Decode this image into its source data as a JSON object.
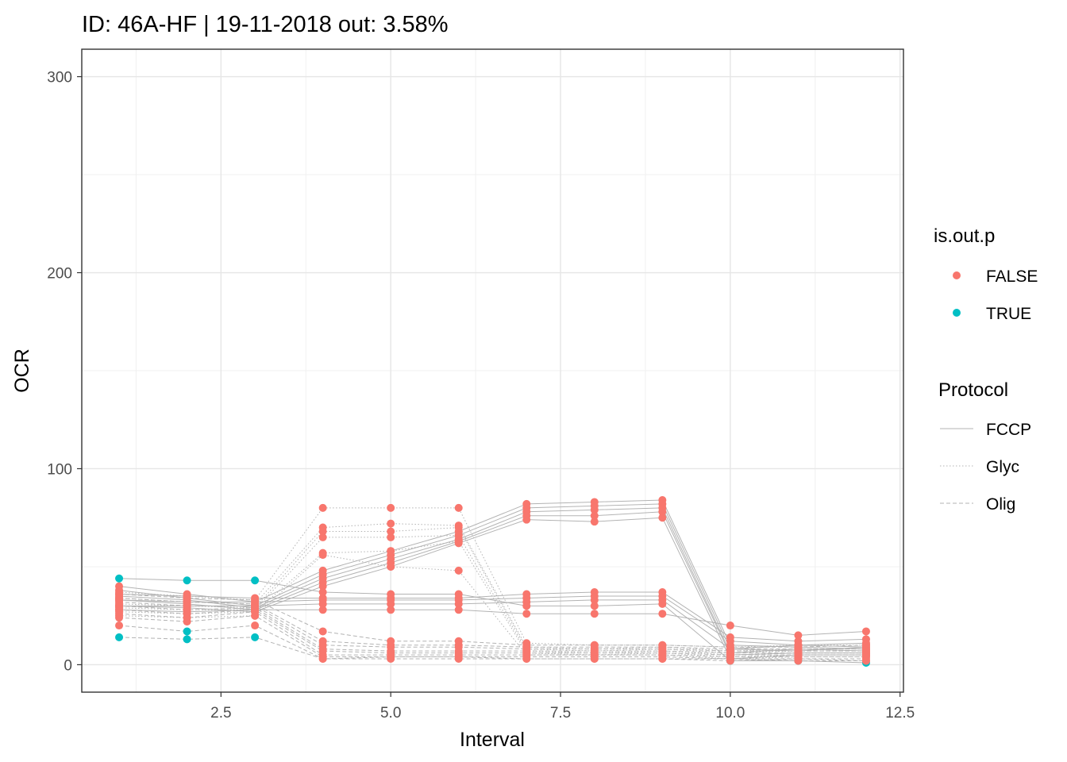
{
  "chart_data": {
    "type": "line",
    "title": "ID: 46A-HF | 19-11-2018  out: 3.58%",
    "xlabel": "Interval",
    "ylabel": "OCR",
    "xlim": [
      0.45,
      12.55
    ],
    "ylim": [
      -14,
      314
    ],
    "x_ticks": [
      2.5,
      5.0,
      7.5,
      10.0,
      12.5
    ],
    "x_tick_labels": [
      "2.5",
      "5.0",
      "7.5",
      "10.0",
      "12.5"
    ],
    "y_ticks": [
      0,
      100,
      200,
      300
    ],
    "y_tick_labels": [
      "0",
      "100",
      "200",
      "300"
    ],
    "grid": true,
    "legend_position": "right",
    "x": [
      1,
      2,
      3,
      4,
      5,
      6,
      7,
      8,
      9,
      10,
      11,
      12
    ],
    "colors": {
      "FALSE": "#F8766D",
      "TRUE": "#00BFC4",
      "line": "#b3b3b3"
    },
    "legends": [
      {
        "title": "is.out.p",
        "entries": [
          {
            "label": "FALSE",
            "color": "#F8766D",
            "shape": "point"
          },
          {
            "label": "TRUE",
            "color": "#00BFC4",
            "shape": "point"
          }
        ]
      },
      {
        "title": "Protocol",
        "entries": [
          {
            "label": "FCCP",
            "linetype": "solid"
          },
          {
            "label": "Glyc",
            "linetype": "dotted"
          },
          {
            "label": "Olig",
            "linetype": "dashed"
          }
        ]
      }
    ],
    "series": [
      {
        "protocol": "FCCP",
        "values": [
          40,
          36,
          32,
          48,
          58,
          68,
          82,
          83,
          84,
          10,
          9,
          8
        ],
        "out": [
          false,
          false,
          false,
          false,
          false,
          false,
          false,
          false,
          false,
          false,
          false,
          false
        ]
      },
      {
        "protocol": "FCCP",
        "values": [
          38,
          34,
          30,
          46,
          56,
          66,
          80,
          81,
          82,
          8,
          10,
          9
        ],
        "out": [
          false,
          false,
          false,
          false,
          false,
          false,
          false,
          false,
          false,
          false,
          false,
          false
        ]
      },
      {
        "protocol": "FCCP",
        "values": [
          35,
          33,
          29,
          44,
          54,
          64,
          78,
          79,
          80,
          6,
          8,
          7
        ],
        "out": [
          false,
          false,
          false,
          false,
          false,
          false,
          false,
          false,
          false,
          false,
          false,
          false
        ]
      },
      {
        "protocol": "FCCP",
        "values": [
          33,
          31,
          28,
          42,
          52,
          63,
          76,
          76,
          78,
          5,
          6,
          6
        ],
        "out": [
          false,
          false,
          false,
          false,
          false,
          false,
          false,
          false,
          false,
          false,
          false,
          false
        ]
      },
      {
        "protocol": "FCCP",
        "values": [
          30,
          29,
          27,
          40,
          50,
          62,
          74,
          73,
          75,
          3,
          5,
          5
        ],
        "out": [
          false,
          false,
          false,
          false,
          false,
          false,
          false,
          false,
          false,
          false,
          false,
          false
        ]
      },
      {
        "protocol": "FCCP",
        "values": [
          36,
          35,
          34,
          34,
          34,
          34,
          36,
          37,
          37,
          14,
          12,
          13
        ],
        "out": [
          false,
          false,
          false,
          false,
          false,
          false,
          false,
          false,
          false,
          false,
          false,
          false
        ]
      },
      {
        "protocol": "FCCP",
        "values": [
          33,
          32,
          32,
          33,
          33,
          33,
          34,
          35,
          35,
          12,
          10,
          11
        ],
        "out": [
          false,
          false,
          false,
          false,
          false,
          false,
          false,
          false,
          false,
          false,
          false,
          false
        ]
      },
      {
        "protocol": "FCCP",
        "values": [
          30,
          30,
          30,
          31,
          31,
          31,
          32,
          33,
          33,
          8,
          7,
          9
        ],
        "out": [
          false,
          false,
          false,
          false,
          false,
          false,
          false,
          false,
          false,
          false,
          false,
          false
        ]
      },
      {
        "protocol": "FCCP",
        "values": [
          28,
          27,
          28,
          28,
          28,
          28,
          26,
          26,
          26,
          20,
          15,
          17
        ],
        "out": [
          false,
          false,
          false,
          false,
          false,
          false,
          false,
          false,
          false,
          false,
          false,
          false
        ]
      },
      {
        "protocol": "FCCP",
        "values": [
          44,
          43,
          43,
          37,
          36,
          36,
          30,
          30,
          31,
          2,
          2,
          1
        ],
        "out": [
          true,
          true,
          true,
          false,
          false,
          false,
          false,
          false,
          false,
          true,
          true,
          true
        ]
      },
      {
        "protocol": "Glyc",
        "values": [
          37,
          35,
          33,
          80,
          80,
          80,
          11,
          10,
          10,
          9,
          10,
          10
        ],
        "out": [
          false,
          false,
          false,
          false,
          false,
          false,
          false,
          false,
          false,
          false,
          false,
          false
        ]
      },
      {
        "protocol": "Glyc",
        "values": [
          34,
          32,
          31,
          70,
          72,
          71,
          9,
          8,
          9,
          7,
          8,
          8
        ],
        "out": [
          false,
          false,
          false,
          false,
          false,
          false,
          false,
          false,
          false,
          false,
          false,
          false
        ]
      },
      {
        "protocol": "Glyc",
        "values": [
          31,
          30,
          29,
          68,
          68,
          70,
          8,
          7,
          8,
          6,
          7,
          7
        ],
        "out": [
          false,
          false,
          false,
          false,
          false,
          false,
          false,
          false,
          false,
          false,
          false,
          false
        ]
      },
      {
        "protocol": "Glyc",
        "values": [
          29,
          28,
          28,
          65,
          65,
          66,
          7,
          6,
          7,
          5,
          6,
          6
        ],
        "out": [
          false,
          false,
          false,
          false,
          false,
          false,
          false,
          false,
          false,
          false,
          false,
          false
        ]
      },
      {
        "protocol": "Glyc",
        "values": [
          27,
          26,
          27,
          57,
          58,
          63,
          6,
          5,
          6,
          4,
          5,
          5
        ],
        "out": [
          false,
          false,
          false,
          false,
          false,
          false,
          false,
          false,
          false,
          false,
          false,
          false
        ]
      },
      {
        "protocol": "Glyc",
        "values": [
          25,
          24,
          25,
          56,
          50,
          48,
          5,
          5,
          5,
          3,
          4,
          4
        ],
        "out": [
          false,
          false,
          false,
          false,
          false,
          false,
          false,
          false,
          false,
          false,
          false,
          false
        ]
      },
      {
        "protocol": "Olig",
        "values": [
          36,
          34,
          33,
          17,
          12,
          12,
          10,
          10,
          10,
          9,
          9,
          10
        ],
        "out": [
          false,
          false,
          false,
          false,
          false,
          false,
          false,
          false,
          false,
          false,
          false,
          false
        ]
      },
      {
        "protocol": "Olig",
        "values": [
          34,
          32,
          31,
          12,
          10,
          10,
          9,
          9,
          9,
          8,
          8,
          8
        ],
        "out": [
          false,
          false,
          false,
          false,
          false,
          false,
          false,
          false,
          false,
          false,
          false,
          false
        ]
      },
      {
        "protocol": "Olig",
        "values": [
          32,
          30,
          30,
          10,
          9,
          9,
          8,
          8,
          8,
          7,
          7,
          7
        ],
        "out": [
          false,
          false,
          false,
          false,
          false,
          false,
          false,
          false,
          false,
          false,
          false,
          false
        ]
      },
      {
        "protocol": "Olig",
        "values": [
          30,
          28,
          29,
          8,
          7,
          7,
          7,
          7,
          7,
          6,
          6,
          6
        ],
        "out": [
          false,
          false,
          false,
          false,
          false,
          false,
          false,
          false,
          false,
          false,
          false,
          false
        ]
      },
      {
        "protocol": "Olig",
        "values": [
          28,
          26,
          28,
          7,
          6,
          6,
          6,
          6,
          6,
          5,
          5,
          5
        ],
        "out": [
          false,
          false,
          false,
          false,
          false,
          false,
          false,
          false,
          false,
          false,
          false,
          false
        ]
      },
      {
        "protocol": "Olig",
        "values": [
          26,
          24,
          27,
          5,
          5,
          5,
          5,
          5,
          5,
          4,
          4,
          4
        ],
        "out": [
          false,
          false,
          false,
          false,
          false,
          false,
          false,
          false,
          false,
          false,
          false,
          false
        ]
      },
      {
        "protocol": "Olig",
        "values": [
          24,
          22,
          25,
          4,
          4,
          4,
          4,
          4,
          4,
          3,
          3,
          3
        ],
        "out": [
          false,
          false,
          false,
          false,
          false,
          false,
          false,
          false,
          false,
          false,
          false,
          false
        ]
      },
      {
        "protocol": "Olig",
        "values": [
          20,
          17,
          20,
          3,
          3,
          3,
          3,
          3,
          3,
          3,
          2,
          2
        ],
        "out": [
          false,
          true,
          false,
          false,
          false,
          false,
          false,
          false,
          false,
          false,
          false,
          false
        ]
      },
      {
        "protocol": "Olig",
        "values": [
          14,
          13,
          14,
          3,
          4,
          4,
          3,
          3,
          3,
          2,
          3,
          2
        ],
        "out": [
          true,
          true,
          true,
          false,
          false,
          false,
          false,
          false,
          false,
          false,
          false,
          false
        ]
      }
    ]
  }
}
